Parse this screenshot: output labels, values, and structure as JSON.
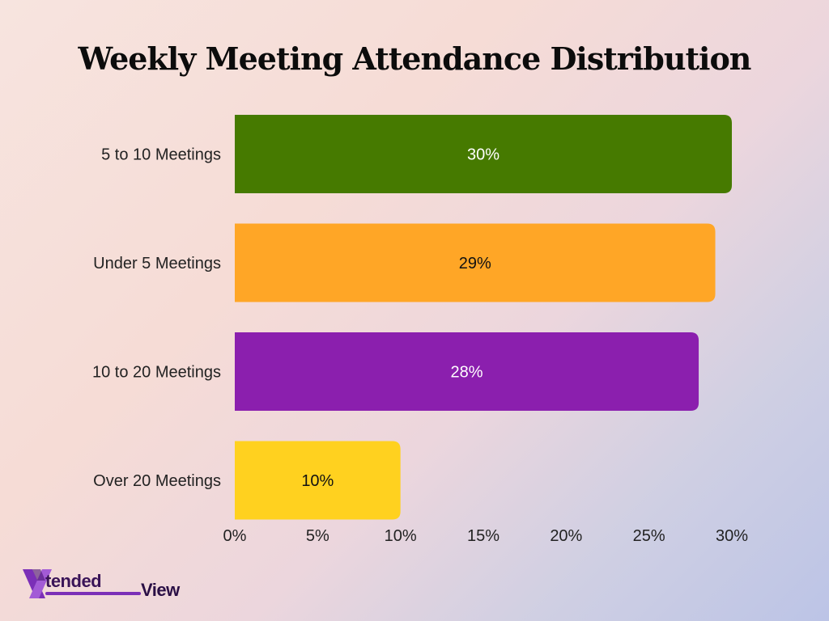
{
  "chart_data": {
    "type": "bar",
    "orientation": "horizontal",
    "title": "Weekly Meeting Attendance Distribution",
    "categories": [
      "5 to 10 Meetings",
      "Under 5 Meetings",
      "10 to 20 Meetings",
      "Over 20 Meetings"
    ],
    "values": [
      30,
      29,
      28,
      10
    ],
    "value_labels": [
      "30%",
      "29%",
      "28%",
      "10%"
    ],
    "colors": [
      "#467a00",
      "#ffa626",
      "#8b1fae",
      "#ffd11f"
    ],
    "value_label_colors": [
      "#ffffff",
      "#111111",
      "#ffffff",
      "#111111"
    ],
    "xlim": [
      0,
      30
    ],
    "x_ticks": [
      0,
      5,
      10,
      15,
      20,
      25,
      30
    ],
    "x_tick_labels": [
      "0%",
      "5%",
      "10%",
      "15%",
      "20%",
      "25%",
      "30%"
    ],
    "xlabel": "",
    "ylabel": "",
    "grid": false,
    "legend": "none"
  },
  "brand": {
    "logo_mark": "X",
    "logo_part1": "tended",
    "logo_part2": "View",
    "accent": "#7b2fb7"
  }
}
